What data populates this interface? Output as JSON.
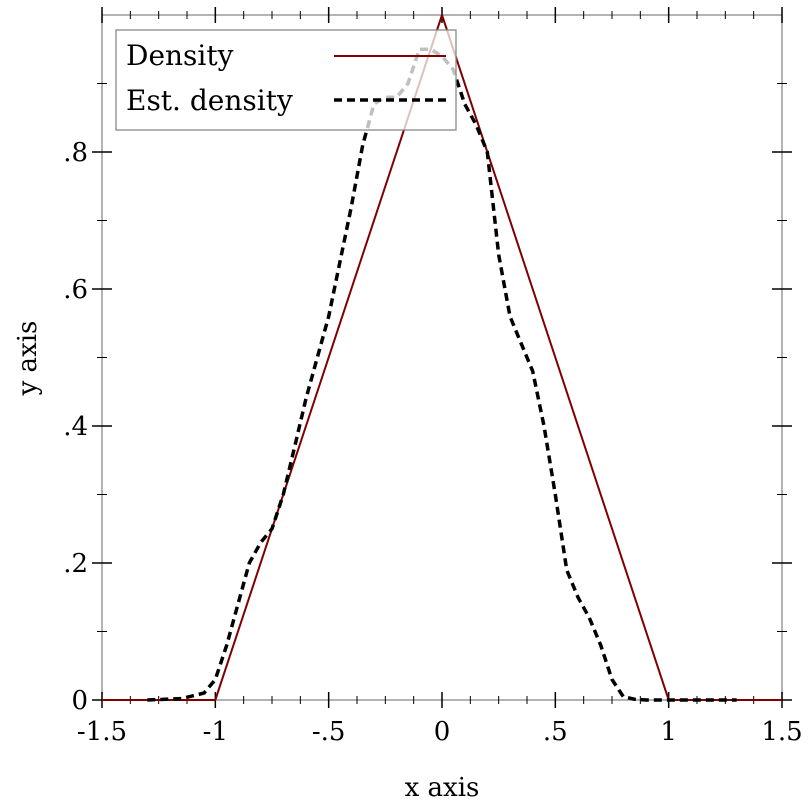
{
  "chart_data": {
    "type": "line",
    "title": "",
    "xlabel": "x axis",
    "ylabel": "y axis",
    "xlim": [
      -1.5,
      1.5
    ],
    "ylim": [
      0,
      1
    ],
    "xticks": [
      {
        "value": -1.5,
        "label": "-1.5"
      },
      {
        "value": -1,
        "label": "-1"
      },
      {
        "value": -0.5,
        "label": "-.5"
      },
      {
        "value": 0,
        "label": "0"
      },
      {
        "value": 0.5,
        "label": ".5"
      },
      {
        "value": 1,
        "label": "1"
      },
      {
        "value": 1.5,
        "label": "1.5"
      }
    ],
    "yticks": [
      {
        "value": 0,
        "label": "0"
      },
      {
        "value": 0.2,
        "label": ".2"
      },
      {
        "value": 0.4,
        "label": ".4"
      },
      {
        "value": 0.6,
        "label": ".6"
      },
      {
        "value": 0.8,
        "label": ".8"
      }
    ],
    "grid": false,
    "legend_position": "top-left",
    "series": [
      {
        "name": "Density",
        "style": "solid",
        "color": "#800000",
        "x": [
          -1.5,
          -1,
          0,
          1,
          1.5
        ],
        "y": [
          0,
          0,
          1,
          0,
          0
        ]
      },
      {
        "name": "Est. density",
        "style": "dashed",
        "color": "#000000",
        "x": [
          -1.3,
          -1.15,
          -1.05,
          -1.0,
          -0.95,
          -0.9,
          -0.85,
          -0.8,
          -0.75,
          -0.7,
          -0.65,
          -0.6,
          -0.55,
          -0.5,
          -0.45,
          -0.4,
          -0.35,
          -0.3,
          -0.25,
          -0.2,
          -0.15,
          -0.1,
          -0.05,
          0.0,
          0.05,
          0.1,
          0.15,
          0.2,
          0.25,
          0.3,
          0.35,
          0.4,
          0.45,
          0.5,
          0.55,
          0.6,
          0.65,
          0.7,
          0.75,
          0.8,
          0.85,
          0.9,
          0.95,
          1.0,
          1.05,
          1.1,
          1.2,
          1.3
        ],
        "y": [
          0.0,
          0.002,
          0.01,
          0.03,
          0.08,
          0.14,
          0.2,
          0.23,
          0.25,
          0.3,
          0.37,
          0.44,
          0.5,
          0.56,
          0.64,
          0.72,
          0.81,
          0.87,
          0.88,
          0.88,
          0.9,
          0.95,
          0.95,
          0.94,
          0.92,
          0.87,
          0.84,
          0.8,
          0.65,
          0.56,
          0.52,
          0.48,
          0.4,
          0.3,
          0.19,
          0.15,
          0.12,
          0.08,
          0.03,
          0.005,
          0.001,
          0.0,
          0.0,
          0.0,
          0.0,
          0.0,
          0.0,
          0.0
        ]
      }
    ]
  }
}
